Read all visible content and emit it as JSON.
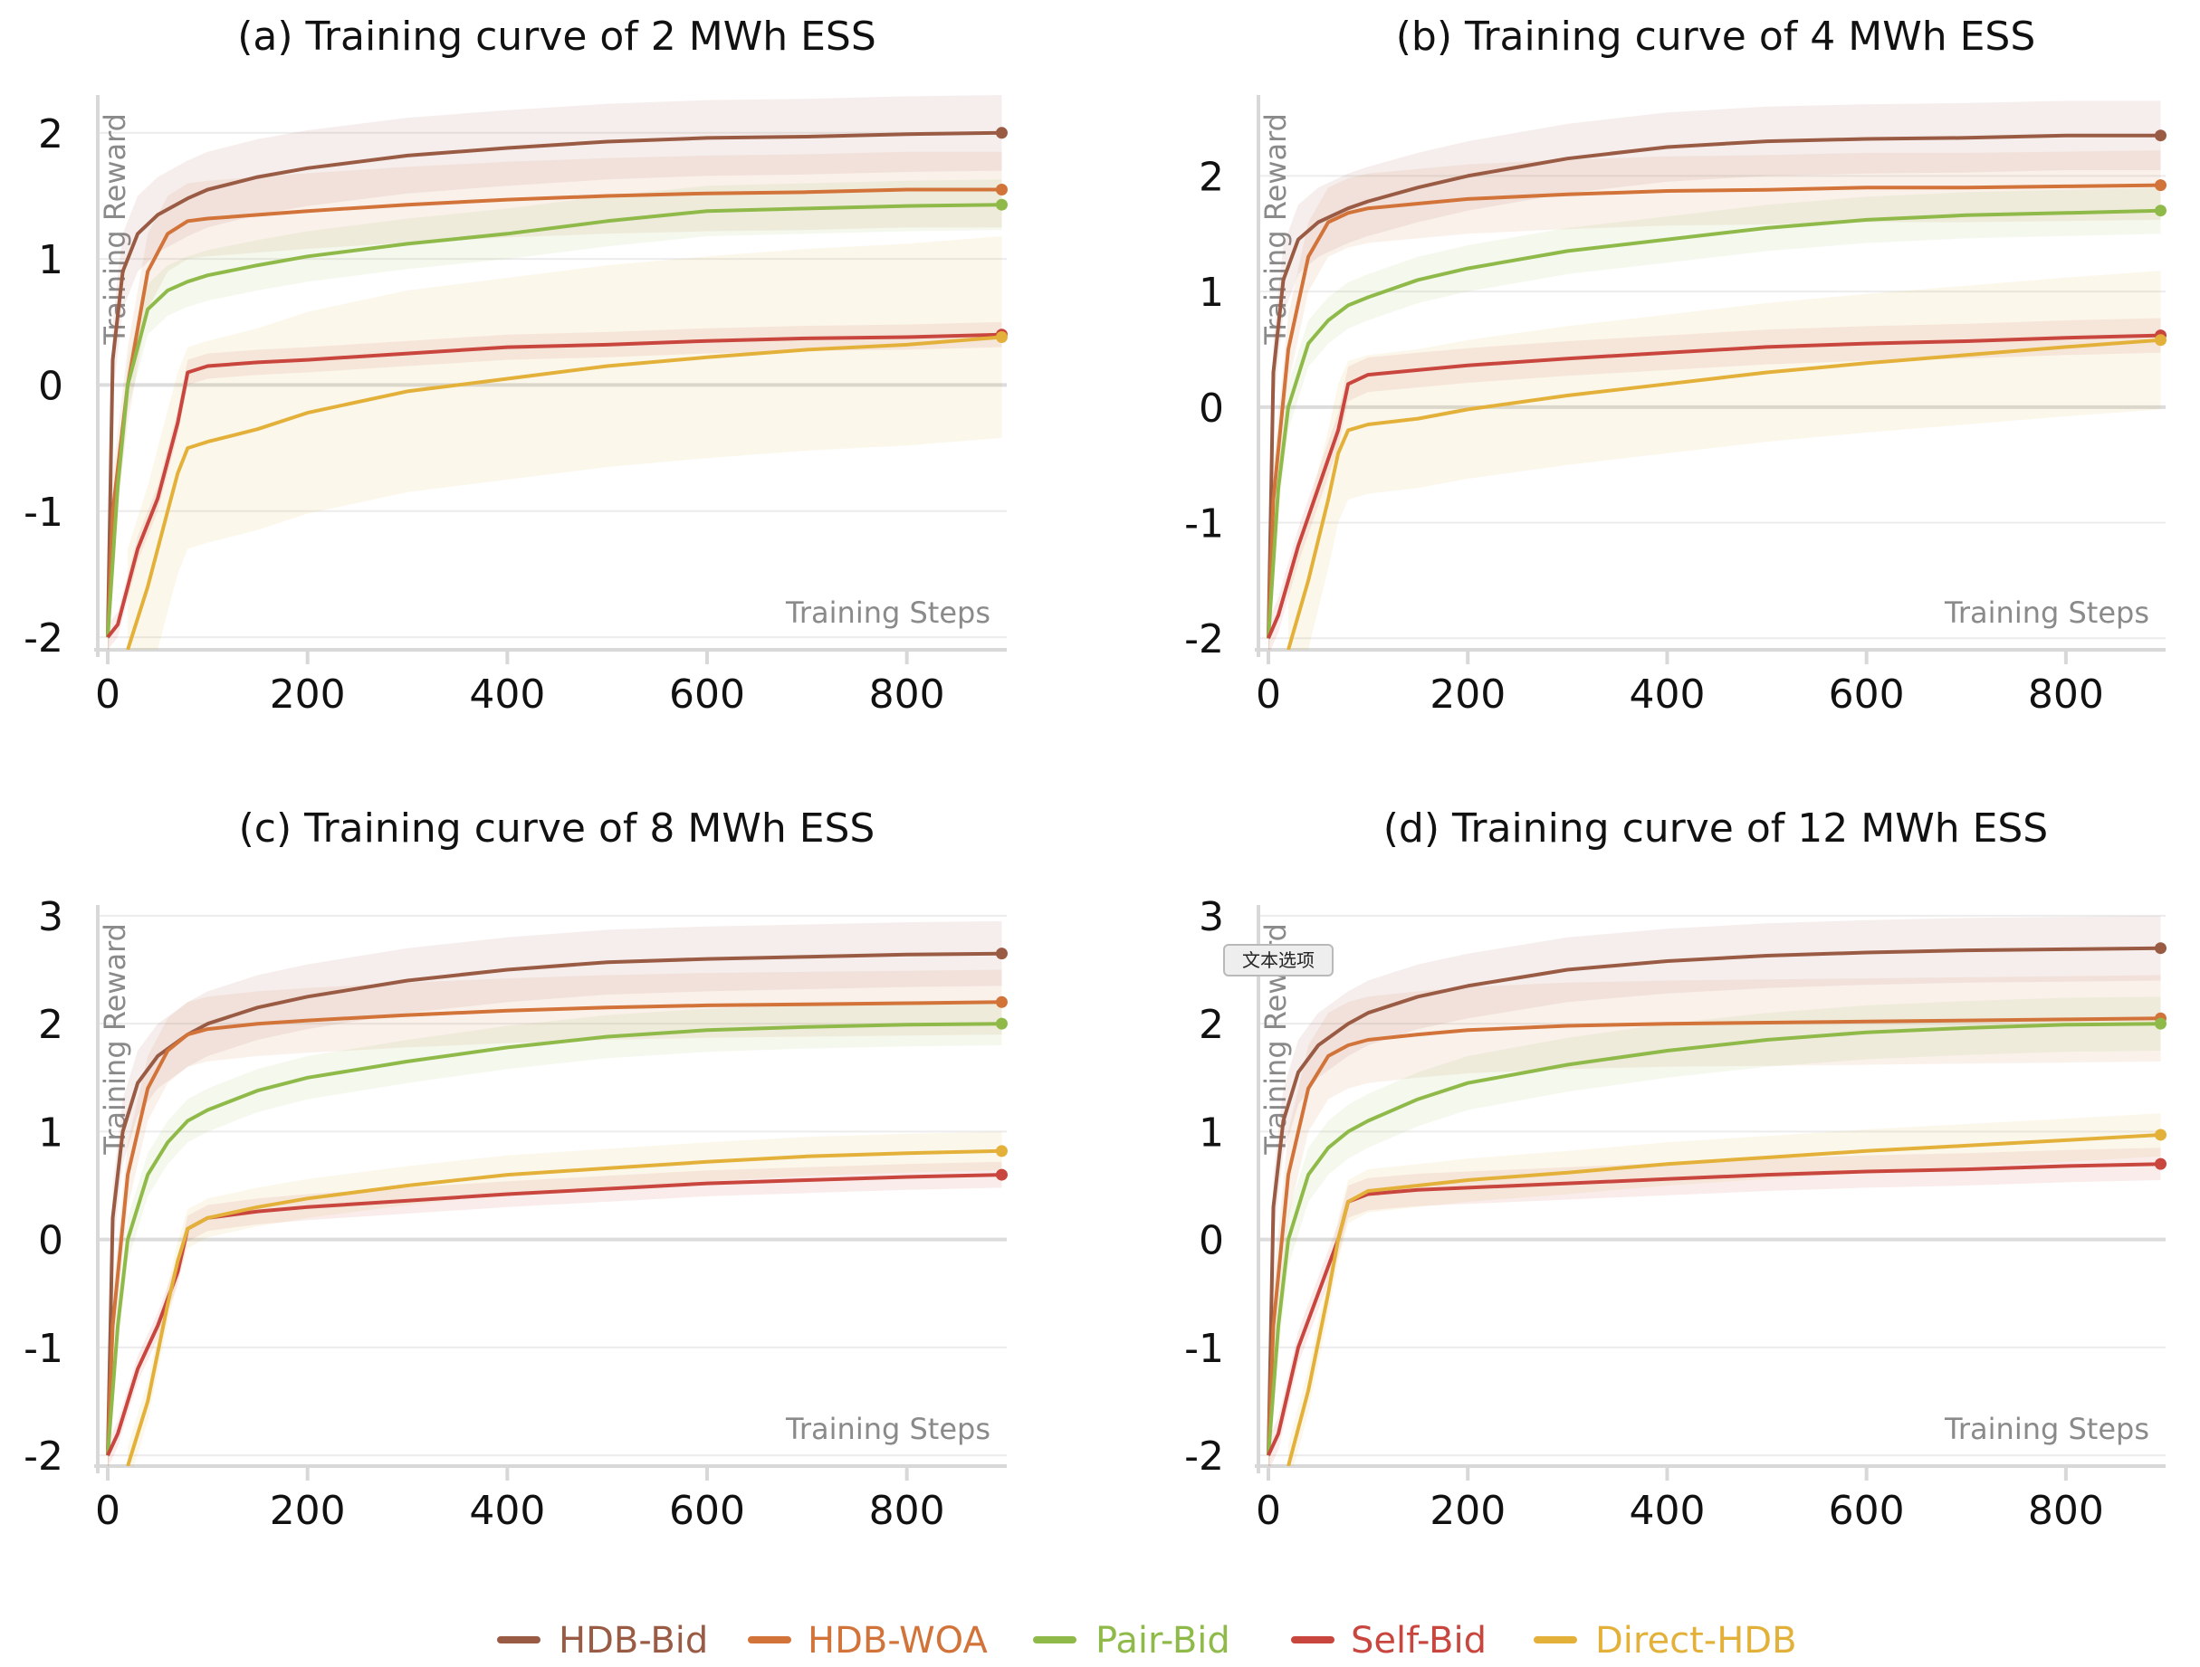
{
  "figure": {
    "legend": [
      {
        "name": "HDB-Bid",
        "color": "#9a5b44"
      },
      {
        "name": "HDB-WOA",
        "color": "#d2733a"
      },
      {
        "name": "Pair-Bid",
        "color": "#8fba4a"
      },
      {
        "name": "Self-Bid",
        "color": "#c9463f"
      },
      {
        "name": "Direct-HDB",
        "color": "#e3b13a"
      }
    ],
    "tooltip": "文本选项"
  },
  "chart_data": [
    {
      "type": "line",
      "title": "(a) Training curve of 2 MWh ESS",
      "xlabel": "Training Steps",
      "ylabel": "Training Reward",
      "xlim": [
        -10,
        900
      ],
      "ylim": [
        -2.1,
        2.3
      ],
      "xticks": [
        0,
        200,
        400,
        600,
        800
      ],
      "xtick_labels": [
        "0",
        "200",
        "400",
        "600",
        "800"
      ],
      "yticks": [
        -2,
        -1,
        0,
        1,
        2
      ],
      "ytick_labels": [
        "-2",
        "-1",
        "0",
        "1",
        "2"
      ],
      "series": [
        {
          "name": "HDB-Bid",
          "color": "#9a5b44",
          "band": 0.3,
          "x": [
            0,
            5,
            15,
            30,
            50,
            80,
            100,
            150,
            200,
            300,
            400,
            500,
            600,
            700,
            800,
            895
          ],
          "y": [
            -2.0,
            0.2,
            0.9,
            1.2,
            1.35,
            1.48,
            1.55,
            1.65,
            1.72,
            1.82,
            1.88,
            1.93,
            1.96,
            1.97,
            1.99,
            2.0
          ]
        },
        {
          "name": "HDB-WOA",
          "color": "#d2733a",
          "band": 0.3,
          "x": [
            0,
            5,
            20,
            40,
            60,
            70,
            80,
            100,
            150,
            200,
            300,
            400,
            500,
            600,
            700,
            800,
            895
          ],
          "y": [
            -2.0,
            -1.0,
            0.0,
            0.9,
            1.2,
            1.25,
            1.3,
            1.32,
            1.35,
            1.38,
            1.43,
            1.47,
            1.5,
            1.52,
            1.53,
            1.55,
            1.55
          ]
        },
        {
          "name": "Pair-Bid",
          "color": "#8fba4a",
          "band": 0.2,
          "x": [
            0,
            10,
            20,
            40,
            60,
            80,
            100,
            150,
            200,
            300,
            400,
            500,
            600,
            700,
            800,
            895
          ],
          "y": [
            -2.0,
            -0.8,
            0.0,
            0.6,
            0.75,
            0.82,
            0.87,
            0.95,
            1.02,
            1.12,
            1.2,
            1.3,
            1.38,
            1.4,
            1.42,
            1.43
          ]
        },
        {
          "name": "Self-Bid",
          "color": "#c9463f",
          "band": 0.1,
          "x": [
            0,
            10,
            20,
            30,
            50,
            70,
            80,
            100,
            150,
            200,
            300,
            400,
            500,
            600,
            700,
            800,
            895
          ],
          "y": [
            -2.0,
            -1.9,
            -1.6,
            -1.3,
            -0.9,
            -0.3,
            0.1,
            0.15,
            0.18,
            0.2,
            0.25,
            0.3,
            0.32,
            0.35,
            0.37,
            0.38,
            0.4
          ]
        },
        {
          "name": "Direct-HDB",
          "color": "#e3b13a",
          "band": 0.8,
          "x": [
            20,
            40,
            60,
            70,
            80,
            100,
            150,
            200,
            300,
            400,
            500,
            600,
            700,
            800,
            895
          ],
          "y": [
            -2.1,
            -1.6,
            -1.0,
            -0.7,
            -0.5,
            -0.45,
            -0.35,
            -0.22,
            -0.05,
            0.05,
            0.15,
            0.22,
            0.28,
            0.32,
            0.38
          ]
        }
      ]
    },
    {
      "type": "line",
      "title": "(b) Training curve of 4 MWh ESS",
      "xlabel": "Training Steps",
      "ylabel": "Training Reward",
      "xlim": [
        -10,
        900
      ],
      "ylim": [
        -2.1,
        2.7
      ],
      "xticks": [
        0,
        200,
        400,
        600,
        800
      ],
      "xtick_labels": [
        "0",
        "200",
        "400",
        "600",
        "800"
      ],
      "yticks": [
        -2,
        -1,
        0,
        1,
        2
      ],
      "ytick_labels": [
        "-2",
        "-1",
        "0",
        "1",
        "2"
      ],
      "series": [
        {
          "name": "HDB-Bid",
          "color": "#9a5b44",
          "band": 0.3,
          "x": [
            0,
            5,
            15,
            30,
            50,
            80,
            100,
            150,
            200,
            300,
            400,
            500,
            600,
            700,
            800,
            895
          ],
          "y": [
            -2.0,
            0.3,
            1.1,
            1.45,
            1.6,
            1.72,
            1.78,
            1.9,
            2.0,
            2.15,
            2.25,
            2.3,
            2.32,
            2.33,
            2.35,
            2.35
          ]
        },
        {
          "name": "HDB-WOA",
          "color": "#d2733a",
          "band": 0.3,
          "x": [
            0,
            5,
            20,
            40,
            60,
            80,
            100,
            150,
            200,
            300,
            400,
            500,
            600,
            700,
            800,
            895
          ],
          "y": [
            -2.0,
            -0.8,
            0.5,
            1.3,
            1.6,
            1.68,
            1.72,
            1.76,
            1.8,
            1.84,
            1.87,
            1.88,
            1.9,
            1.9,
            1.91,
            1.92
          ]
        },
        {
          "name": "Pair-Bid",
          "color": "#8fba4a",
          "band": 0.2,
          "x": [
            0,
            10,
            20,
            40,
            60,
            80,
            100,
            150,
            200,
            300,
            400,
            500,
            600,
            700,
            800,
            895
          ],
          "y": [
            -2.0,
            -0.7,
            0.0,
            0.55,
            0.75,
            0.88,
            0.95,
            1.1,
            1.2,
            1.35,
            1.45,
            1.55,
            1.62,
            1.66,
            1.68,
            1.7
          ]
        },
        {
          "name": "Self-Bid",
          "color": "#c9463f",
          "band": 0.15,
          "x": [
            0,
            10,
            20,
            30,
            50,
            70,
            80,
            100,
            150,
            200,
            300,
            400,
            500,
            600,
            700,
            800,
            895
          ],
          "y": [
            -2.0,
            -1.8,
            -1.5,
            -1.2,
            -0.7,
            -0.2,
            0.2,
            0.28,
            0.32,
            0.36,
            0.42,
            0.47,
            0.52,
            0.55,
            0.57,
            0.6,
            0.62
          ]
        },
        {
          "name": "Direct-HDB",
          "color": "#e3b13a",
          "band": 0.6,
          "x": [
            20,
            40,
            60,
            70,
            80,
            100,
            150,
            200,
            300,
            400,
            500,
            600,
            700,
            800,
            895
          ],
          "y": [
            -2.1,
            -1.5,
            -0.8,
            -0.4,
            -0.2,
            -0.15,
            -0.1,
            -0.02,
            0.1,
            0.2,
            0.3,
            0.38,
            0.45,
            0.52,
            0.58
          ]
        }
      ]
    },
    {
      "type": "line",
      "title": "(c) Training curve of 8 MWh ESS",
      "xlabel": "Training Steps",
      "ylabel": "Training Reward",
      "xlim": [
        -10,
        900
      ],
      "ylim": [
        -2.1,
        3.1
      ],
      "xticks": [
        0,
        200,
        400,
        600,
        800
      ],
      "xtick_labels": [
        "0",
        "200",
        "400",
        "600",
        "800"
      ],
      "yticks": [
        -2,
        -1,
        0,
        1,
        2,
        3
      ],
      "ytick_labels": [
        "-2",
        "-1",
        "0",
        "1",
        "2",
        "3"
      ],
      "series": [
        {
          "name": "HDB-Bid",
          "color": "#9a5b44",
          "band": 0.3,
          "x": [
            0,
            5,
            15,
            30,
            50,
            80,
            100,
            150,
            200,
            300,
            400,
            500,
            600,
            700,
            800,
            895
          ],
          "y": [
            -2.0,
            0.2,
            1.0,
            1.45,
            1.7,
            1.9,
            2.0,
            2.15,
            2.25,
            2.4,
            2.5,
            2.57,
            2.6,
            2.62,
            2.64,
            2.65
          ]
        },
        {
          "name": "HDB-WOA",
          "color": "#d2733a",
          "band": 0.3,
          "x": [
            0,
            5,
            20,
            40,
            60,
            80,
            100,
            150,
            200,
            300,
            400,
            500,
            600,
            700,
            800,
            895
          ],
          "y": [
            -2.0,
            -0.8,
            0.6,
            1.4,
            1.75,
            1.9,
            1.95,
            2.0,
            2.03,
            2.08,
            2.12,
            2.15,
            2.17,
            2.18,
            2.19,
            2.2
          ]
        },
        {
          "name": "Pair-Bid",
          "color": "#8fba4a",
          "band": 0.2,
          "x": [
            0,
            10,
            20,
            40,
            60,
            80,
            100,
            150,
            200,
            300,
            400,
            500,
            600,
            700,
            800,
            895
          ],
          "y": [
            -2.0,
            -0.8,
            0.0,
            0.6,
            0.9,
            1.1,
            1.2,
            1.38,
            1.5,
            1.65,
            1.78,
            1.88,
            1.94,
            1.97,
            1.99,
            2.0
          ]
        },
        {
          "name": "Self-Bid",
          "color": "#c9463f",
          "band": 0.12,
          "x": [
            0,
            10,
            20,
            30,
            50,
            70,
            80,
            100,
            150,
            200,
            300,
            400,
            500,
            600,
            700,
            800,
            895
          ],
          "y": [
            -2.0,
            -1.8,
            -1.5,
            -1.2,
            -0.8,
            -0.3,
            0.1,
            0.2,
            0.26,
            0.3,
            0.36,
            0.42,
            0.47,
            0.52,
            0.55,
            0.58,
            0.6
          ]
        },
        {
          "name": "Direct-HDB",
          "color": "#e3b13a",
          "band": 0.18,
          "x": [
            20,
            40,
            60,
            70,
            80,
            100,
            150,
            200,
            300,
            400,
            500,
            600,
            700,
            800,
            895
          ],
          "y": [
            -2.1,
            -1.5,
            -0.6,
            -0.2,
            0.1,
            0.2,
            0.3,
            0.38,
            0.5,
            0.6,
            0.66,
            0.72,
            0.77,
            0.8,
            0.82
          ]
        }
      ]
    },
    {
      "type": "line",
      "title": "(d) Training curve of 12 MWh ESS",
      "xlabel": "Training Steps",
      "ylabel": "Training Reward",
      "xlim": [
        -10,
        900
      ],
      "ylim": [
        -2.1,
        3.1
      ],
      "xticks": [
        0,
        200,
        400,
        600,
        800
      ],
      "xtick_labels": [
        "0",
        "200",
        "400",
        "600",
        "800"
      ],
      "yticks": [
        -2,
        -1,
        0,
        1,
        2,
        3
      ],
      "ytick_labels": [
        "-2",
        "-1",
        "0",
        "1",
        "2",
        "3"
      ],
      "series": [
        {
          "name": "HDB-Bid",
          "color": "#9a5b44",
          "band": 0.3,
          "x": [
            0,
            5,
            15,
            30,
            50,
            80,
            100,
            150,
            200,
            300,
            400,
            500,
            600,
            700,
            800,
            895
          ],
          "y": [
            -2.0,
            0.3,
            1.1,
            1.55,
            1.8,
            2.0,
            2.1,
            2.25,
            2.35,
            2.5,
            2.58,
            2.63,
            2.66,
            2.68,
            2.69,
            2.7
          ]
        },
        {
          "name": "HDB-WOA",
          "color": "#d2733a",
          "band": 0.4,
          "x": [
            0,
            5,
            20,
            40,
            60,
            80,
            100,
            150,
            200,
            300,
            400,
            500,
            600,
            700,
            800,
            895
          ],
          "y": [
            -2.0,
            -0.8,
            0.6,
            1.4,
            1.7,
            1.8,
            1.85,
            1.9,
            1.94,
            1.98,
            2.0,
            2.01,
            2.02,
            2.03,
            2.04,
            2.05
          ]
        },
        {
          "name": "Pair-Bid",
          "color": "#8fba4a",
          "band": 0.25,
          "x": [
            0,
            10,
            20,
            40,
            60,
            80,
            100,
            150,
            200,
            300,
            400,
            500,
            600,
            700,
            800,
            895
          ],
          "y": [
            -2.0,
            -0.8,
            0.0,
            0.6,
            0.85,
            1.0,
            1.1,
            1.3,
            1.45,
            1.62,
            1.75,
            1.85,
            1.92,
            1.96,
            1.99,
            2.0
          ]
        },
        {
          "name": "Self-Bid",
          "color": "#c9463f",
          "band": 0.15,
          "x": [
            0,
            10,
            20,
            30,
            50,
            70,
            80,
            100,
            150,
            200,
            300,
            400,
            500,
            600,
            700,
            800,
            895
          ],
          "y": [
            -2.0,
            -1.8,
            -1.4,
            -1.0,
            -0.5,
            0.0,
            0.35,
            0.42,
            0.46,
            0.48,
            0.52,
            0.56,
            0.6,
            0.63,
            0.65,
            0.68,
            0.7
          ]
        },
        {
          "name": "Direct-HDB",
          "color": "#e3b13a",
          "band": 0.2,
          "x": [
            20,
            40,
            60,
            70,
            80,
            100,
            150,
            200,
            300,
            400,
            500,
            600,
            700,
            800,
            895
          ],
          "y": [
            -2.1,
            -1.4,
            -0.5,
            0.0,
            0.35,
            0.45,
            0.5,
            0.55,
            0.62,
            0.7,
            0.76,
            0.82,
            0.87,
            0.92,
            0.97
          ]
        }
      ]
    }
  ]
}
